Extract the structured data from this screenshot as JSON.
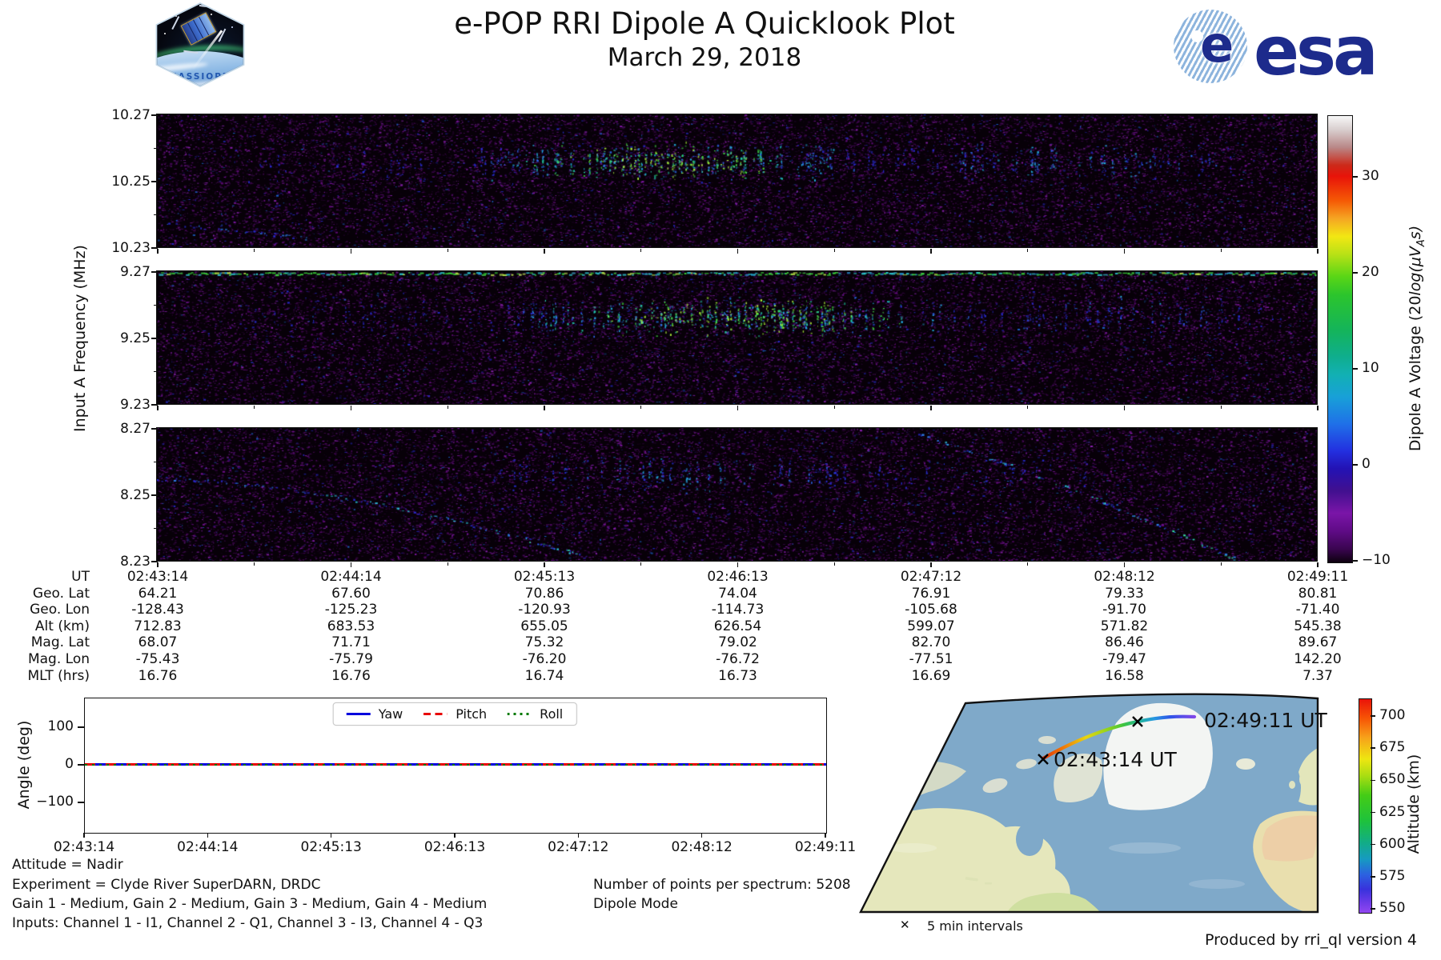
{
  "header": {
    "title": "e-POP RRI Dipole A Quicklook Plot",
    "subtitle": "March 29, 2018",
    "cassiope_label": "CASSIOPE",
    "esa_wordmark": "esa"
  },
  "chart_data": [
    {
      "type": "heatmap",
      "name": "rri-spectrogram",
      "title": "e-POP RRI Dipole A Quicklook Plot",
      "ylabel": "Input A Frequency (MHz)",
      "xticks": [
        "02:43:14",
        "02:44:14",
        "02:45:13",
        "02:46:13",
        "02:47:12",
        "02:48:12",
        "02:49:11"
      ],
      "panels": [
        {
          "ylim": [
            10.23,
            10.27
          ],
          "yticks": [
            "10.27",
            "10.25",
            "10.23"
          ],
          "signal": "pulsed narrowband emission near 10.256 MHz, strongest 02:44:30-02:46:30, purple background noise"
        },
        {
          "ylim": [
            9.23,
            9.27
          ],
          "yticks": [
            "9.27",
            "9.25",
            "9.23"
          ],
          "signal": "continuous green line at 9.27 MHz plus pulsed emission near 9.256 MHz"
        },
        {
          "ylim": [
            8.23,
            8.27
          ],
          "yticks": [
            "8.27",
            "8.25",
            "8.23"
          ],
          "signal": "weak pulses near 8.256 MHz plus two descending chirp traces"
        }
      ],
      "colorbar": {
        "label": "Dipole A Voltage (20log(μV_As)",
        "label_pre": "Dipole A Voltage (20",
        "label_math": "log(μV",
        "label_sub": "A",
        "label_post": "s)",
        "ticks": [
          "30",
          "20",
          "10",
          "0",
          "−10"
        ],
        "range": [
          -10,
          37
        ]
      },
      "grid": false
    },
    {
      "type": "line",
      "name": "attitude-angles",
      "ylabel": "Angle (deg)",
      "ylim": [
        -180,
        180
      ],
      "yticks": [
        "100",
        "0",
        "−100"
      ],
      "xticks": [
        "02:43:14",
        "02:44:14",
        "02:45:13",
        "02:46:13",
        "02:47:12",
        "02:48:12",
        "02:49:11"
      ],
      "legend_position": "upper center",
      "series": [
        {
          "name": "Yaw",
          "color": "#0000dd",
          "style": "solid",
          "values": [
            0,
            0,
            0,
            0,
            0,
            0,
            0
          ]
        },
        {
          "name": "Pitch",
          "color": "#e80000",
          "style": "dashed",
          "values": [
            0,
            0,
            0,
            0,
            0,
            0,
            0
          ]
        },
        {
          "name": "Roll",
          "color": "#007a00",
          "style": "dotted",
          "values": [
            0,
            0,
            0,
            0,
            0,
            0,
            0
          ]
        }
      ]
    },
    {
      "type": "map",
      "name": "ground-track-map",
      "region": "North America / North Atlantic",
      "track": {
        "start_label": "02:43:14 UT",
        "end_label": "02:49:11 UT",
        "start_alt_km": 712.83,
        "end_alt_km": 545.38,
        "marker_note": "5 min intervals"
      },
      "colorbar": {
        "label": "Altitude (km)",
        "ticks": [
          "700",
          "675",
          "650",
          "625",
          "600",
          "575",
          "550"
        ],
        "range": [
          545,
          715
        ]
      }
    }
  ],
  "ephemeris": {
    "rows": [
      {
        "label": "UT",
        "values": [
          "02:43:14",
          "02:44:14",
          "02:45:13",
          "02:46:13",
          "02:47:12",
          "02:48:12",
          "02:49:11"
        ]
      },
      {
        "label": "Geo. Lat",
        "values": [
          "64.21",
          "67.60",
          "70.86",
          "74.04",
          "76.91",
          "79.33",
          "80.81"
        ]
      },
      {
        "label": "Geo. Lon",
        "values": [
          "-128.43",
          "-125.23",
          "-120.93",
          "-114.73",
          "-105.68",
          "-91.70",
          "-71.40"
        ]
      },
      {
        "label": "Alt (km)",
        "values": [
          "712.83",
          "683.53",
          "655.05",
          "626.54",
          "599.07",
          "571.82",
          "545.38"
        ]
      },
      {
        "label": "Mag. Lat",
        "values": [
          "68.07",
          "71.71",
          "75.32",
          "79.02",
          "82.70",
          "86.46",
          "89.67"
        ]
      },
      {
        "label": "Mag. Lon",
        "values": [
          "-75.43",
          "-75.79",
          "-76.20",
          "-76.72",
          "-77.51",
          "-79.47",
          "142.20"
        ]
      },
      {
        "label": "MLT (hrs)",
        "values": [
          "16.76",
          "16.76",
          "16.74",
          "16.73",
          "16.69",
          "16.58",
          "7.37"
        ]
      }
    ]
  },
  "notes": {
    "attitude": "Attitude = Nadir",
    "experiment": "Experiment = Clyde River SuperDARN, DRDC",
    "gain": "Gain 1 - Medium, Gain 2 - Medium, Gain 3 - Medium, Gain 4 - Medium",
    "inputs": "Inputs: Channel 1 - I1, Channel 2 - Q1, Channel 3 - I3, Channel 4 - Q3",
    "points": "Number of points per spectrum: 5208",
    "mode": "Dipole Mode",
    "intervals": "5 min intervals",
    "produced": "Produced by rri_ql version 4"
  },
  "colors": {
    "ocean": "#7fa9c9",
    "land": "#e5e7bc",
    "arctic_land": "#d9ded2",
    "greenland": "#f3f5f3",
    "sahara": "#eec9a4",
    "esa_blue": "#1d2b8c",
    "voltage_cmap": [
      "#f7f7f7",
      "#b98888",
      "#e81309",
      "#f55a05",
      "#f2e713",
      "#59d616",
      "#14b45a",
      "#12b0b4",
      "#1f70e8",
      "#2312b4",
      "#7a15a8",
      "#3a0550",
      "#0d010f"
    ],
    "altitude_cmap": [
      "#ea1309",
      "#f7a21a",
      "#eee611",
      "#44cc16",
      "#12ad85",
      "#2b62e0",
      "#9247f0"
    ]
  }
}
